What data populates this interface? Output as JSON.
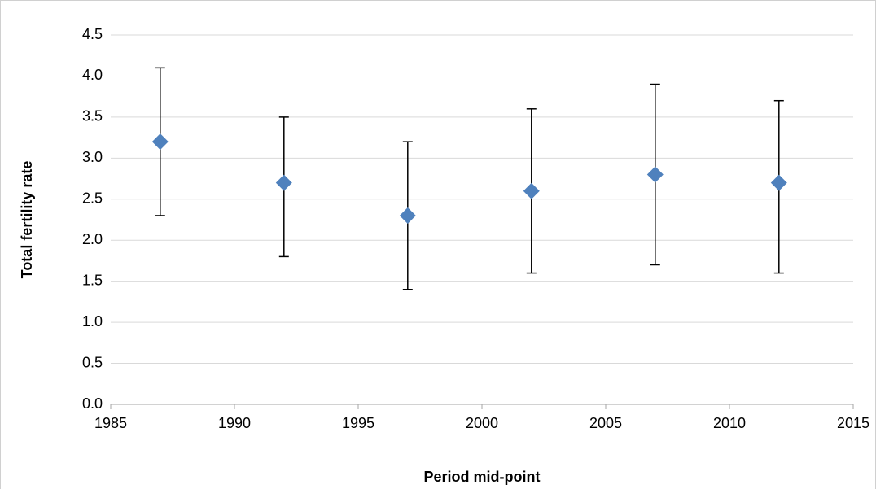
{
  "chart_data": {
    "type": "scatter",
    "x_label": "Period mid-point",
    "y_label": "Total fertility rate",
    "series": [
      {
        "name": "Total fertility rate",
        "color": "#4f81bd",
        "x": [
          1987,
          1992,
          1997,
          2002,
          2007,
          2012
        ],
        "values": [
          3.2,
          2.7,
          2.3,
          2.6,
          2.8,
          2.7
        ],
        "lower": [
          2.3,
          1.8,
          1.4,
          1.6,
          1.7,
          1.6
        ],
        "upper": [
          4.1,
          3.5,
          3.2,
          3.6,
          3.9,
          3.7
        ]
      }
    ],
    "xlim": [
      1985,
      2015
    ],
    "xticks": [
      1985,
      1990,
      1995,
      2000,
      2005,
      2010,
      2015
    ],
    "ylim": [
      0,
      4.5
    ],
    "yticks": [
      {
        "value": 0,
        "label": "0.0"
      },
      0.5,
      {
        "value": 1,
        "label": "1.0"
      },
      1.5,
      {
        "value": 2,
        "label": "2.0"
      },
      2.5,
      {
        "value": 3,
        "label": "3.0"
      },
      3.5,
      {
        "value": 4,
        "label": "4.0"
      },
      4.5
    ],
    "grid": true
  }
}
